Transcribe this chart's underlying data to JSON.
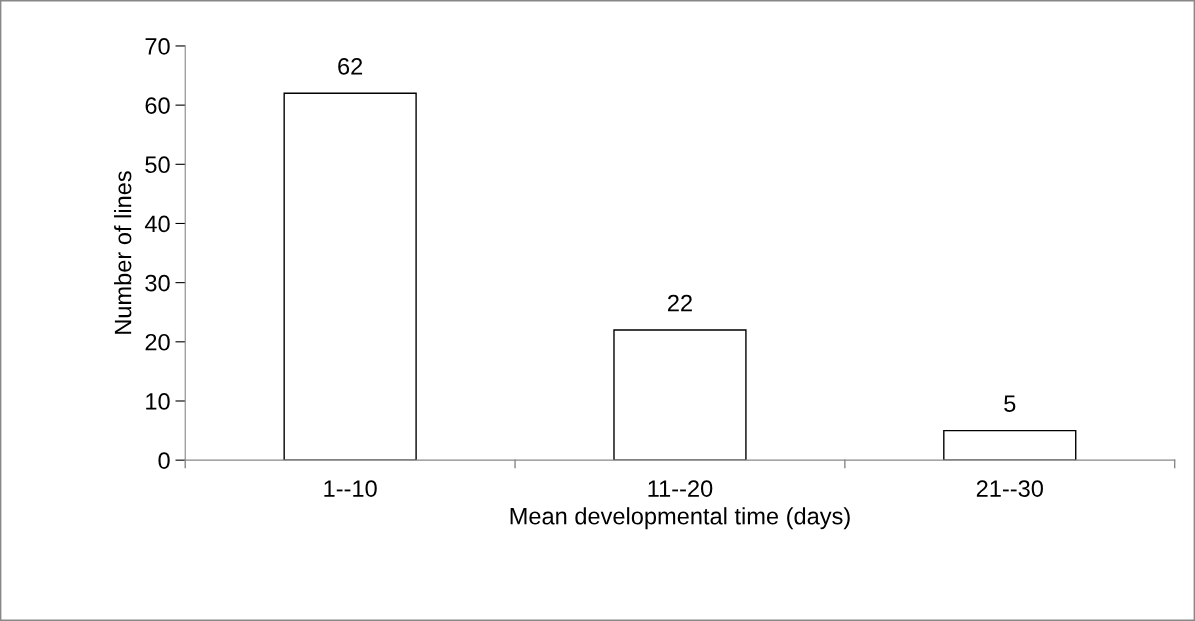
{
  "chart_data": {
    "type": "bar",
    "xlabel": "Mean developmental time (days)",
    "ylabel": "Number of lines",
    "categories": [
      "1--10",
      "11--20",
      "21--30"
    ],
    "values": [
      62,
      22,
      5
    ],
    "color": "#ffffff",
    "ylim": [
      0,
      70
    ],
    "yticks": [
      0,
      10,
      20,
      30,
      40,
      50,
      60,
      70
    ],
    "grid": false,
    "data_labels": true
  }
}
